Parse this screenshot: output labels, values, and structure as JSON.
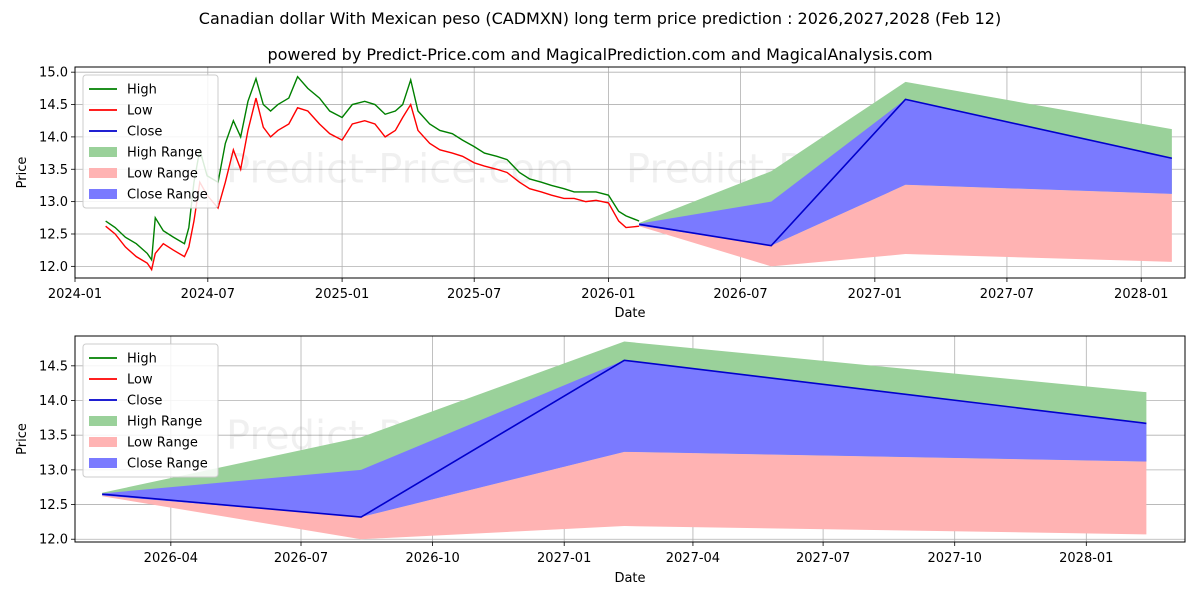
{
  "titles": {
    "main": "Canadian dollar With Mexican peso (CADMXN) long term price prediction : 2026,2027,2028 (Feb 12)",
    "sub": "powered by Predict-Price.com and MagicalPrediction.com and MagicalAnalysis.com"
  },
  "watermark": "Predict-Price.com",
  "colors": {
    "high": "#008000",
    "low": "#ff0000",
    "close": "#0000cc",
    "high_range": "#9ad19a",
    "low_range": "#ffb3b3",
    "close_range": "#7a7aff"
  },
  "chart_data": [
    {
      "type": "line",
      "panel": "top",
      "xlabel": "Date",
      "ylabel": "Price",
      "ylim": [
        11.82,
        15.08
      ],
      "xlim": [
        "2024-01-01",
        "2028-03-01"
      ],
      "xticks": [
        "2024-01",
        "2024-07",
        "2025-01",
        "2025-07",
        "2026-01",
        "2026-07",
        "2027-01",
        "2027-07",
        "2028-01"
      ],
      "yticks": [
        "12.0",
        "12.5",
        "13.0",
        "13.5",
        "14.0",
        "14.5",
        "15.0"
      ],
      "grid": true,
      "legend": [
        "High",
        "Low",
        "Close",
        "High Range",
        "Low Range",
        "Close Range"
      ],
      "legend_location": "upper-left",
      "history_low": {
        "x": [
          "2024-02-12",
          "2024-02-25",
          "2024-03-10",
          "2024-03-25",
          "2024-04-09",
          "2024-04-15",
          "2024-04-20",
          "2024-05-01",
          "2024-05-15",
          "2024-05-30",
          "2024-06-05",
          "2024-06-12",
          "2024-06-20",
          "2024-06-30",
          "2024-07-15",
          "2024-07-25",
          "2024-08-05",
          "2024-08-15",
          "2024-08-25",
          "2024-09-05",
          "2024-09-15",
          "2024-09-25",
          "2024-10-05",
          "2024-10-20",
          "2024-11-01",
          "2024-11-15",
          "2024-12-01",
          "2024-12-15",
          "2025-01-01",
          "2025-01-15",
          "2025-02-01",
          "2025-02-15",
          "2025-03-01",
          "2025-03-15",
          "2025-03-25",
          "2025-04-05",
          "2025-04-15",
          "2025-05-01",
          "2025-05-15",
          "2025-06-01",
          "2025-06-15",
          "2025-07-01",
          "2025-07-15",
          "2025-08-01",
          "2025-08-15",
          "2025-09-01",
          "2025-09-15",
          "2025-10-01",
          "2025-10-15",
          "2025-11-01",
          "2025-11-15",
          "2025-12-01",
          "2025-12-15",
          "2026-01-01",
          "2026-01-15",
          "2026-01-25",
          "2026-02-12"
        ],
        "values": [
          12.62,
          12.5,
          12.3,
          12.15,
          12.05,
          11.95,
          12.2,
          12.35,
          12.25,
          12.15,
          12.3,
          12.7,
          13.3,
          13.1,
          12.9,
          13.3,
          13.8,
          13.5,
          14.1,
          14.6,
          14.15,
          14.0,
          14.1,
          14.2,
          14.45,
          14.4,
          14.2,
          14.05,
          13.95,
          14.2,
          14.25,
          14.2,
          14.0,
          14.1,
          14.3,
          14.5,
          14.1,
          13.9,
          13.8,
          13.75,
          13.7,
          13.6,
          13.55,
          13.5,
          13.45,
          13.3,
          13.2,
          13.15,
          13.1,
          13.05,
          13.05,
          13.0,
          13.02,
          12.98,
          12.7,
          12.6,
          12.62
        ]
      },
      "history_high": {
        "x": [
          "2024-02-12",
          "2024-02-25",
          "2024-03-10",
          "2024-03-25",
          "2024-04-09",
          "2024-04-15",
          "2024-04-20",
          "2024-05-01",
          "2024-05-15",
          "2024-05-30",
          "2024-06-05",
          "2024-06-12",
          "2024-06-20",
          "2024-06-30",
          "2024-07-15",
          "2024-07-25",
          "2024-08-05",
          "2024-08-15",
          "2024-08-25",
          "2024-09-05",
          "2024-09-15",
          "2024-09-25",
          "2024-10-05",
          "2024-10-20",
          "2024-11-01",
          "2024-11-15",
          "2024-12-01",
          "2024-12-15",
          "2025-01-01",
          "2025-01-15",
          "2025-02-01",
          "2025-02-15",
          "2025-03-01",
          "2025-03-15",
          "2025-03-25",
          "2025-04-05",
          "2025-04-15",
          "2025-05-01",
          "2025-05-15",
          "2025-06-01",
          "2025-06-15",
          "2025-07-01",
          "2025-07-15",
          "2025-08-01",
          "2025-08-15",
          "2025-09-01",
          "2025-09-15",
          "2025-10-01",
          "2025-10-15",
          "2025-11-01",
          "2025-11-15",
          "2025-12-01",
          "2025-12-15",
          "2026-01-01",
          "2026-01-15",
          "2026-01-25",
          "2026-02-12"
        ],
        "values": [
          12.7,
          12.6,
          12.45,
          12.35,
          12.2,
          12.1,
          12.75,
          12.55,
          12.45,
          12.35,
          12.6,
          13.3,
          13.8,
          13.4,
          13.3,
          13.9,
          14.25,
          14.0,
          14.55,
          14.9,
          14.5,
          14.4,
          14.5,
          14.6,
          14.93,
          14.75,
          14.6,
          14.4,
          14.3,
          14.5,
          14.55,
          14.5,
          14.35,
          14.4,
          14.5,
          14.88,
          14.4,
          14.2,
          14.1,
          14.05,
          13.95,
          13.85,
          13.75,
          13.7,
          13.65,
          13.45,
          13.35,
          13.3,
          13.25,
          13.2,
          13.15,
          13.15,
          13.15,
          13.1,
          12.85,
          12.78,
          12.7
        ]
      },
      "forecast": {
        "x": [
          "2026-02-12",
          "2026-08-12",
          "2027-02-12",
          "2028-02-12"
        ],
        "close": [
          12.65,
          12.32,
          14.58,
          13.67
        ],
        "high_range_upper": [
          12.67,
          13.47,
          14.85,
          14.12
        ],
        "low_range_lower": [
          12.62,
          12.0,
          12.19,
          12.07
        ],
        "close_range_upper": [
          12.66,
          13.0,
          14.58,
          13.67
        ],
        "close_range_lower": [
          12.63,
          12.32,
          13.26,
          13.12
        ],
        "close_range_upper_x": [
          "2026-02-12",
          "2026-08-12",
          "2027-02-12",
          "2028-02-12"
        ]
      }
    },
    {
      "type": "area",
      "panel": "bottom",
      "xlabel": "Date",
      "ylabel": "Price",
      "ylim": [
        11.96,
        14.93
      ],
      "xlim": [
        "2026-01-24",
        "2028-03-10"
      ],
      "xticks": [
        "2026-04",
        "2026-07",
        "2026-10",
        "2027-01",
        "2027-04",
        "2027-07",
        "2027-10",
        "2028-01"
      ],
      "yticks": [
        "12.0",
        "12.5",
        "13.0",
        "13.5",
        "14.0",
        "14.5"
      ],
      "grid": true,
      "legend": [
        "High",
        "Low",
        "Close",
        "High Range",
        "Low Range",
        "Close Range"
      ],
      "legend_location": "upper-left",
      "forecast": {
        "x": [
          "2026-02-12",
          "2026-08-12",
          "2027-02-12",
          "2028-02-12"
        ],
        "close": [
          12.65,
          12.32,
          14.58,
          13.67
        ],
        "high_range_upper": [
          12.67,
          13.47,
          14.85,
          14.12
        ],
        "low_range_lower": [
          12.62,
          12.0,
          12.19,
          12.07
        ],
        "close_range_upper": [
          12.66,
          13.0,
          14.58,
          13.67
        ],
        "close_range_lower": [
          12.63,
          12.32,
          13.26,
          13.12
        ]
      }
    }
  ]
}
